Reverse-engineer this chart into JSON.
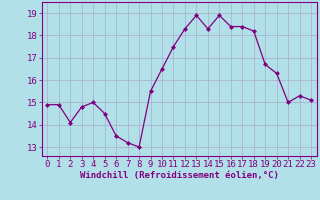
{
  "x": [
    0,
    1,
    2,
    3,
    4,
    5,
    6,
    7,
    8,
    9,
    10,
    11,
    12,
    13,
    14,
    15,
    16,
    17,
    18,
    19,
    20,
    21,
    22,
    23
  ],
  "y": [
    14.9,
    14.9,
    14.1,
    14.8,
    15.0,
    14.5,
    13.5,
    13.2,
    13.0,
    15.5,
    16.5,
    17.5,
    18.3,
    18.9,
    18.3,
    18.9,
    18.4,
    18.4,
    18.2,
    16.7,
    16.3,
    15.0,
    15.3,
    15.1
  ],
  "line_color": "#800080",
  "bg_color": "#b2e0e8",
  "grid_color": "#aaaacc",
  "ylabel_ticks": [
    13,
    14,
    15,
    16,
    17,
    18,
    19
  ],
  "ylim": [
    12.6,
    19.5
  ],
  "xlim": [
    -0.5,
    23.5
  ],
  "xlabel": "Windchill (Refroidissement éolien,°C)",
  "xlabel_fontsize": 6.5,
  "tick_fontsize": 6.5,
  "marker": "D",
  "markersize": 2.0,
  "linewidth": 0.9
}
